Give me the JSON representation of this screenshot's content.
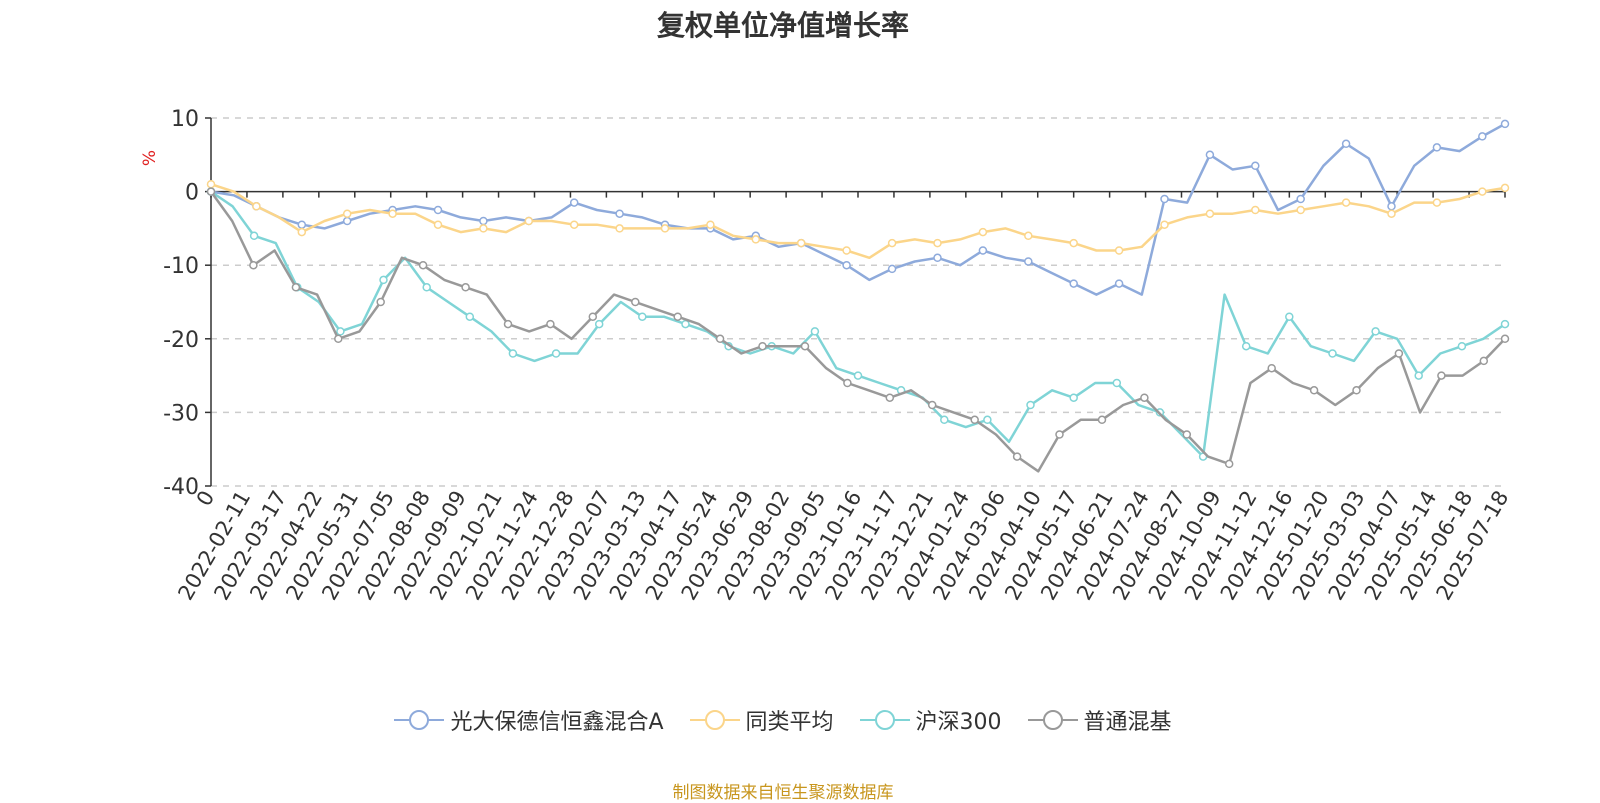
{
  "chart_data": {
    "type": "line",
    "title": "复权单位净值增长率",
    "ylabel": "%",
    "ylim": [
      -40,
      10
    ],
    "yticks": [
      10,
      0,
      -10,
      -20,
      -30,
      -40
    ],
    "x_ticks": [
      "0",
      "2022-02-11",
      "2022-03-17",
      "2022-04-22",
      "2022-05-31",
      "2022-07-05",
      "2022-08-08",
      "2022-09-09",
      "2022-10-21",
      "2022-11-24",
      "2022-12-28",
      "2023-02-07",
      "2023-03-13",
      "2023-04-17",
      "2023-05-24",
      "2023-06-29",
      "2023-08-02",
      "2023-09-05",
      "2023-10-16",
      "2023-11-17",
      "2023-12-21",
      "2024-01-24",
      "2024-03-06",
      "2024-04-10",
      "2024-05-17",
      "2024-06-21",
      "2024-07-24",
      "2024-08-27",
      "2024-10-09",
      "2024-11-12",
      "2024-12-16",
      "2025-01-20",
      "2025-03-03",
      "2025-04-07",
      "2025-05-14",
      "2025-06-18",
      "2025-07-18"
    ],
    "grid": "horizontal-dashed",
    "legend": "bottom-center",
    "source_note": "制图数据来自恒生聚源数据库",
    "series": [
      {
        "name": "光大保德信恒鑫混合A",
        "color": "#8eaadb",
        "values": [
          0,
          -0.5,
          -2,
          -3.5,
          -4.5,
          -5,
          -4,
          -3,
          -2.5,
          -2,
          -2.5,
          -3.5,
          -4,
          -3.5,
          -4,
          -3.5,
          -1.5,
          -2.5,
          -3,
          -3.5,
          -4.5,
          -5,
          -5,
          -6.5,
          -6,
          -7.5,
          -7,
          -8.5,
          -10,
          -12,
          -10.5,
          -9.5,
          -9,
          -10,
          -8,
          -9,
          -9.5,
          -11,
          -12.5,
          -14,
          -12.5,
          -14,
          -1,
          -1.5,
          5,
          3,
          3.5,
          -2.5,
          -1,
          3.5,
          6.5,
          4.5,
          -2,
          3.5,
          6,
          5.5,
          7.5,
          9.2
        ]
      },
      {
        "name": "同类平均",
        "color": "#fbd58a",
        "values": [
          1,
          0,
          -2,
          -3.5,
          -5.5,
          -4,
          -3,
          -2.5,
          -3,
          -3,
          -4.5,
          -5.5,
          -5,
          -5.5,
          -4,
          -4,
          -4.5,
          -4.5,
          -5,
          -5,
          -5,
          -5,
          -4.5,
          -6,
          -6.5,
          -7,
          -7,
          -7.5,
          -8,
          -9,
          -7,
          -6.5,
          -7,
          -6.5,
          -5.5,
          -5,
          -6,
          -6.5,
          -7,
          -8,
          -8,
          -7.5,
          -4.5,
          -3.5,
          -3,
          -3,
          -2.5,
          -3,
          -2.5,
          -2,
          -1.5,
          -2,
          -3,
          -1.5,
          -1.5,
          -1,
          0,
          0.5
        ]
      },
      {
        "name": "沪深300",
        "color": "#7fd4d6",
        "values": [
          0,
          -2,
          -6,
          -7,
          -13,
          -15,
          -19,
          -18,
          -12,
          -9,
          -13,
          -15,
          -17,
          -19,
          -22,
          -23,
          -22,
          -22,
          -18,
          -15,
          -17,
          -17,
          -18,
          -19,
          -21,
          -22,
          -21,
          -22,
          -19,
          -24,
          -25,
          -26,
          -27,
          -28,
          -31,
          -32,
          -31,
          -34,
          -29,
          -27,
          -28,
          -26,
          -26,
          -29,
          -30,
          -33,
          -36,
          -14,
          -21,
          -22,
          -17,
          -21,
          -22,
          -23,
          -19,
          -20,
          -25,
          -22,
          -21,
          -20,
          -18
        ]
      },
      {
        "name": "普通混基",
        "color": "#999999",
        "values": [
          0,
          -4,
          -10,
          -8,
          -13,
          -14,
          -20,
          -19,
          -15,
          -9,
          -10,
          -12,
          -13,
          -14,
          -18,
          -19,
          -18,
          -20,
          -17,
          -14,
          -15,
          -16,
          -17,
          -18,
          -20,
          -22,
          -21,
          -21,
          -21,
          -24,
          -26,
          -27,
          -28,
          -27,
          -29,
          -30,
          -31,
          -33,
          -36,
          -38,
          -33,
          -31,
          -31,
          -29,
          -28,
          -31,
          -33,
          -36,
          -37,
          -26,
          -24,
          -26,
          -27,
          -29,
          -27,
          -24,
          -22,
          -30,
          -25,
          -25,
          -23,
          -20
        ]
      }
    ]
  }
}
